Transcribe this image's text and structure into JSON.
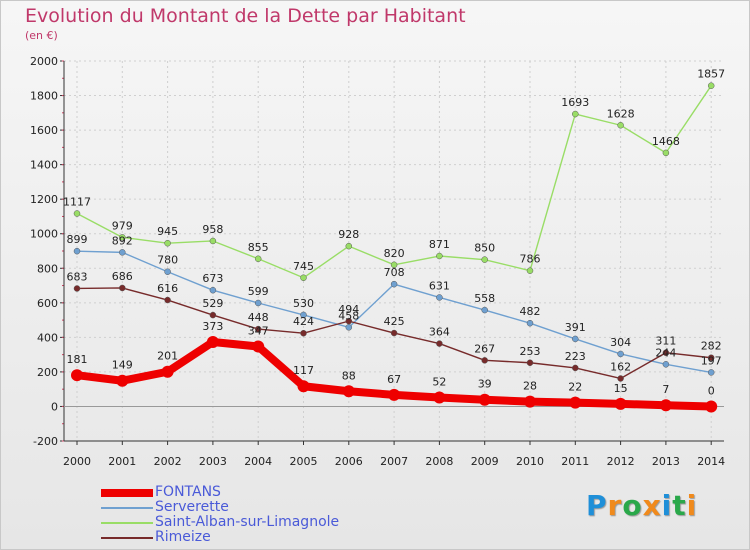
{
  "colors": {
    "title": "#c0386a",
    "legend_text": "#4a5ad8",
    "axis": "#333333",
    "grid": "#cfcfcf",
    "gridline_red": "#d04060"
  },
  "chart_data": {
    "type": "line",
    "title": "Evolution du Montant de la Dette par Habitant",
    "subtitle": "(en €)",
    "xlabel": "",
    "ylabel": "",
    "x": [
      2000,
      2001,
      2002,
      2003,
      2004,
      2005,
      2006,
      2007,
      2008,
      2009,
      2010,
      2011,
      2012,
      2013,
      2014
    ],
    "ylim": [
      -200,
      2000
    ],
    "yticks": [
      -200,
      0,
      200,
      400,
      600,
      800,
      1000,
      1200,
      1400,
      1600,
      1800,
      2000
    ],
    "grid": true,
    "legend_position": "bottom-left",
    "series": [
      {
        "name": "FONTANS",
        "color": "#ee0000",
        "width": "thick",
        "values": [
          181,
          149,
          201,
          373,
          347,
          117,
          88,
          67,
          52,
          39,
          28,
          22,
          15,
          7,
          0
        ],
        "labels": [
          "181",
          "149",
          "201",
          "373",
          "347",
          "117",
          "88",
          "67",
          "52",
          "39",
          "28",
          "22",
          "15",
          "7",
          "0"
        ]
      },
      {
        "name": "Serverette",
        "color": "#6fa0d0",
        "width": "thin",
        "values": [
          899,
          892,
          780,
          673,
          599,
          530,
          458,
          708,
          631,
          558,
          482,
          391,
          304,
          244,
          197
        ],
        "labels": [
          "899",
          "892",
          "780",
          "673",
          "599",
          "530",
          "458",
          "708",
          "631",
          "558",
          "482",
          "391",
          "304",
          "244",
          "197"
        ]
      },
      {
        "name": "Saint-Alban-sur-Limagnole",
        "color": "#99dd66",
        "width": "thin",
        "values": [
          1117,
          979,
          945,
          958,
          855,
          745,
          928,
          820,
          871,
          850,
          786,
          1693,
          1628,
          1468,
          1857
        ],
        "labels": [
          "1117",
          "979",
          "945",
          "958",
          "855",
          "745",
          "928",
          "820",
          "871",
          "850",
          "786",
          "1693",
          "1628",
          "1468",
          "1857"
        ]
      },
      {
        "name": "Rimeize",
        "color": "#772b2b",
        "width": "thin",
        "values": [
          683,
          686,
          616,
          529,
          448,
          424,
          494,
          425,
          364,
          267,
          253,
          223,
          162,
          311,
          282
        ],
        "labels": [
          "683",
          "686",
          "616",
          "529",
          "448",
          "424",
          "494",
          "425",
          "364",
          "267",
          "253",
          "223",
          "162",
          "311",
          "282"
        ]
      }
    ]
  },
  "logo": {
    "letters": [
      "P",
      "r",
      "o",
      "x",
      "i",
      "t",
      "i"
    ],
    "colors": [
      "#1f8fd8",
      "#f08a1c",
      "#2aa84a",
      "#f08a1c",
      "#1f8fd8",
      "#2aa84a",
      "#f08a1c"
    ]
  }
}
